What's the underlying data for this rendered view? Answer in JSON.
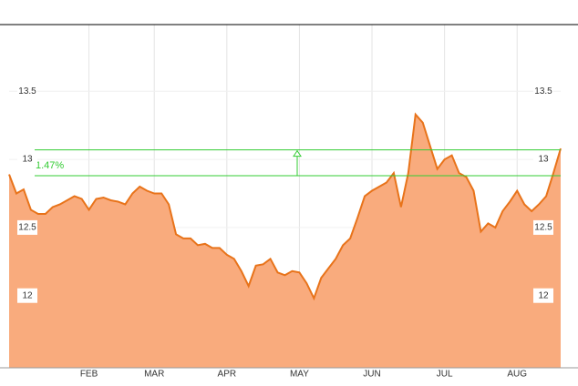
{
  "chart_data": {
    "type": "area",
    "categories": [
      null,
      null,
      null,
      null,
      null,
      null,
      null,
      null,
      null,
      null,
      null,
      "FEB",
      null,
      null,
      null,
      null,
      null,
      null,
      null,
      null,
      "MAR",
      null,
      null,
      null,
      null,
      null,
      null,
      null,
      null,
      null,
      "APR",
      null,
      null,
      null,
      null,
      null,
      null,
      null,
      null,
      null,
      "MAY",
      null,
      null,
      null,
      null,
      null,
      null,
      null,
      null,
      null,
      "JUN",
      null,
      null,
      null,
      null,
      null,
      null,
      null,
      null,
      null,
      "JUL",
      null,
      null,
      null,
      null,
      null,
      null,
      null,
      null,
      null,
      "AUG",
      null,
      null,
      null,
      null,
      null,
      null
    ],
    "values": [
      12.89,
      12.75,
      12.78,
      12.63,
      12.6,
      12.6,
      12.65,
      12.67,
      12.7,
      12.73,
      12.71,
      12.63,
      12.71,
      12.72,
      12.7,
      12.69,
      12.67,
      12.75,
      12.8,
      12.77,
      12.75,
      12.75,
      12.67,
      12.45,
      12.42,
      12.42,
      12.37,
      12.38,
      12.35,
      12.35,
      12.3,
      12.27,
      12.18,
      12.07,
      12.22,
      12.23,
      12.27,
      12.17,
      12.15,
      12.18,
      12.17,
      12.09,
      11.98,
      12.13,
      12.2,
      12.27,
      12.37,
      12.42,
      12.57,
      12.73,
      12.77,
      12.8,
      12.83,
      12.9,
      12.65,
      12.9,
      13.33,
      13.27,
      13.1,
      12.93,
      13.0,
      13.03,
      12.9,
      12.87,
      12.77,
      12.47,
      12.53,
      12.5,
      12.62,
      12.69,
      12.77,
      12.67,
      12.62,
      12.67,
      12.73,
      12.9,
      13.08
    ],
    "color": "#e8731a",
    "fill": "#f9ab7d",
    "ylim": [
      11.47,
      13.99
    ],
    "yticks": [
      12,
      12.5,
      13,
      13.5
    ],
    "grid": true,
    "reference_lines": {
      "values": [
        12.88,
        13.07
      ],
      "color": "#33cc33",
      "label": "1.47%"
    }
  }
}
